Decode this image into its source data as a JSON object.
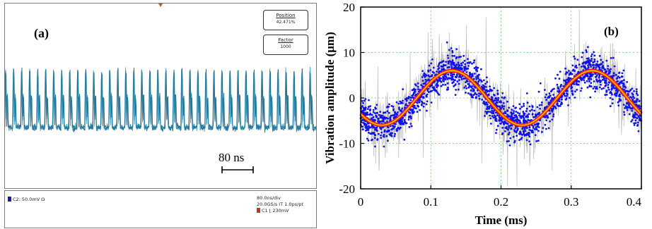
{
  "panel_a": {
    "tag": "(a)",
    "position_box": {
      "title": "Position",
      "value": "42.471%"
    },
    "factor_box": {
      "title": "Factor",
      "value": "1000"
    },
    "scale_bar_label": "80 ns",
    "channel_readout": "C2:  50.0mV  Ω",
    "timebase": "80.0ns/div",
    "sample_rate": "20.0GS/s IT 1.0ps/pt",
    "trigger": "C1 ⌊ 230mV",
    "colors": {
      "trace": "#1f7fa6",
      "trace_dark": "#0c5878",
      "trigger_marker": "#e0452e",
      "channel_marker": "#1a1a8a",
      "trigger_box": "#b53a24"
    }
  },
  "chart_data": [
    {
      "type": "line",
      "title": "",
      "xlabel": "",
      "ylabel": "",
      "x_unit": "ns",
      "description_source": "oscilloscope pulse train, 80.0ns/div",
      "x_range_ns": [
        0,
        800
      ],
      "pulse_period_ns": 20.6,
      "series": [
        {
          "values_relative": {
            "baseline": 0.0,
            "peak": 1.0
          }
        }
      ]
    },
    {
      "type": "scatter",
      "title": "",
      "xlabel": "Time (ms)",
      "ylabel": "Vibration amplitude (μm)",
      "xlim": [
        0,
        0.4
      ],
      "ylim": [
        -20,
        20
      ],
      "xticks": [
        "0",
        "0.1",
        "0.2",
        "0.3",
        "0.4"
      ],
      "yticks": [
        "20",
        "10",
        "0",
        "-10",
        "-20"
      ],
      "grid": true,
      "legend": "none",
      "tag": "(b)",
      "colors": {
        "raw": "#b8b8b8",
        "scatter": "#1010e8",
        "fit_outer": "#ff1a00",
        "fit_inner": "#ffd000",
        "grid": "#66cc66"
      },
      "fit": {
        "amplitude": 6.0,
        "offset": 0.0,
        "period_ms": 0.2,
        "peak_at_ms": 0.13
      },
      "x": [
        0.0,
        0.02,
        0.04,
        0.06,
        0.08,
        0.1,
        0.12,
        0.13,
        0.14,
        0.16,
        0.18,
        0.2,
        0.22,
        0.23,
        0.24,
        0.26,
        0.28,
        0.3,
        0.32,
        0.33,
        0.34,
        0.36,
        0.38,
        0.4
      ],
      "series": [
        {
          "values": [
            -2.6,
            -4.9,
            -5.9,
            -4.9,
            -2.7,
            0.2,
            4.6,
            6.0,
            5.7,
            3.5,
            0.3,
            -2.8,
            -5.4,
            -6.0,
            -5.6,
            -3.6,
            -0.3,
            2.7,
            5.4,
            6.0,
            5.7,
            3.5,
            0.3,
            -2.6
          ]
        }
      ],
      "scatter_spread": 3.5,
      "raw_spread": 13
    }
  ]
}
